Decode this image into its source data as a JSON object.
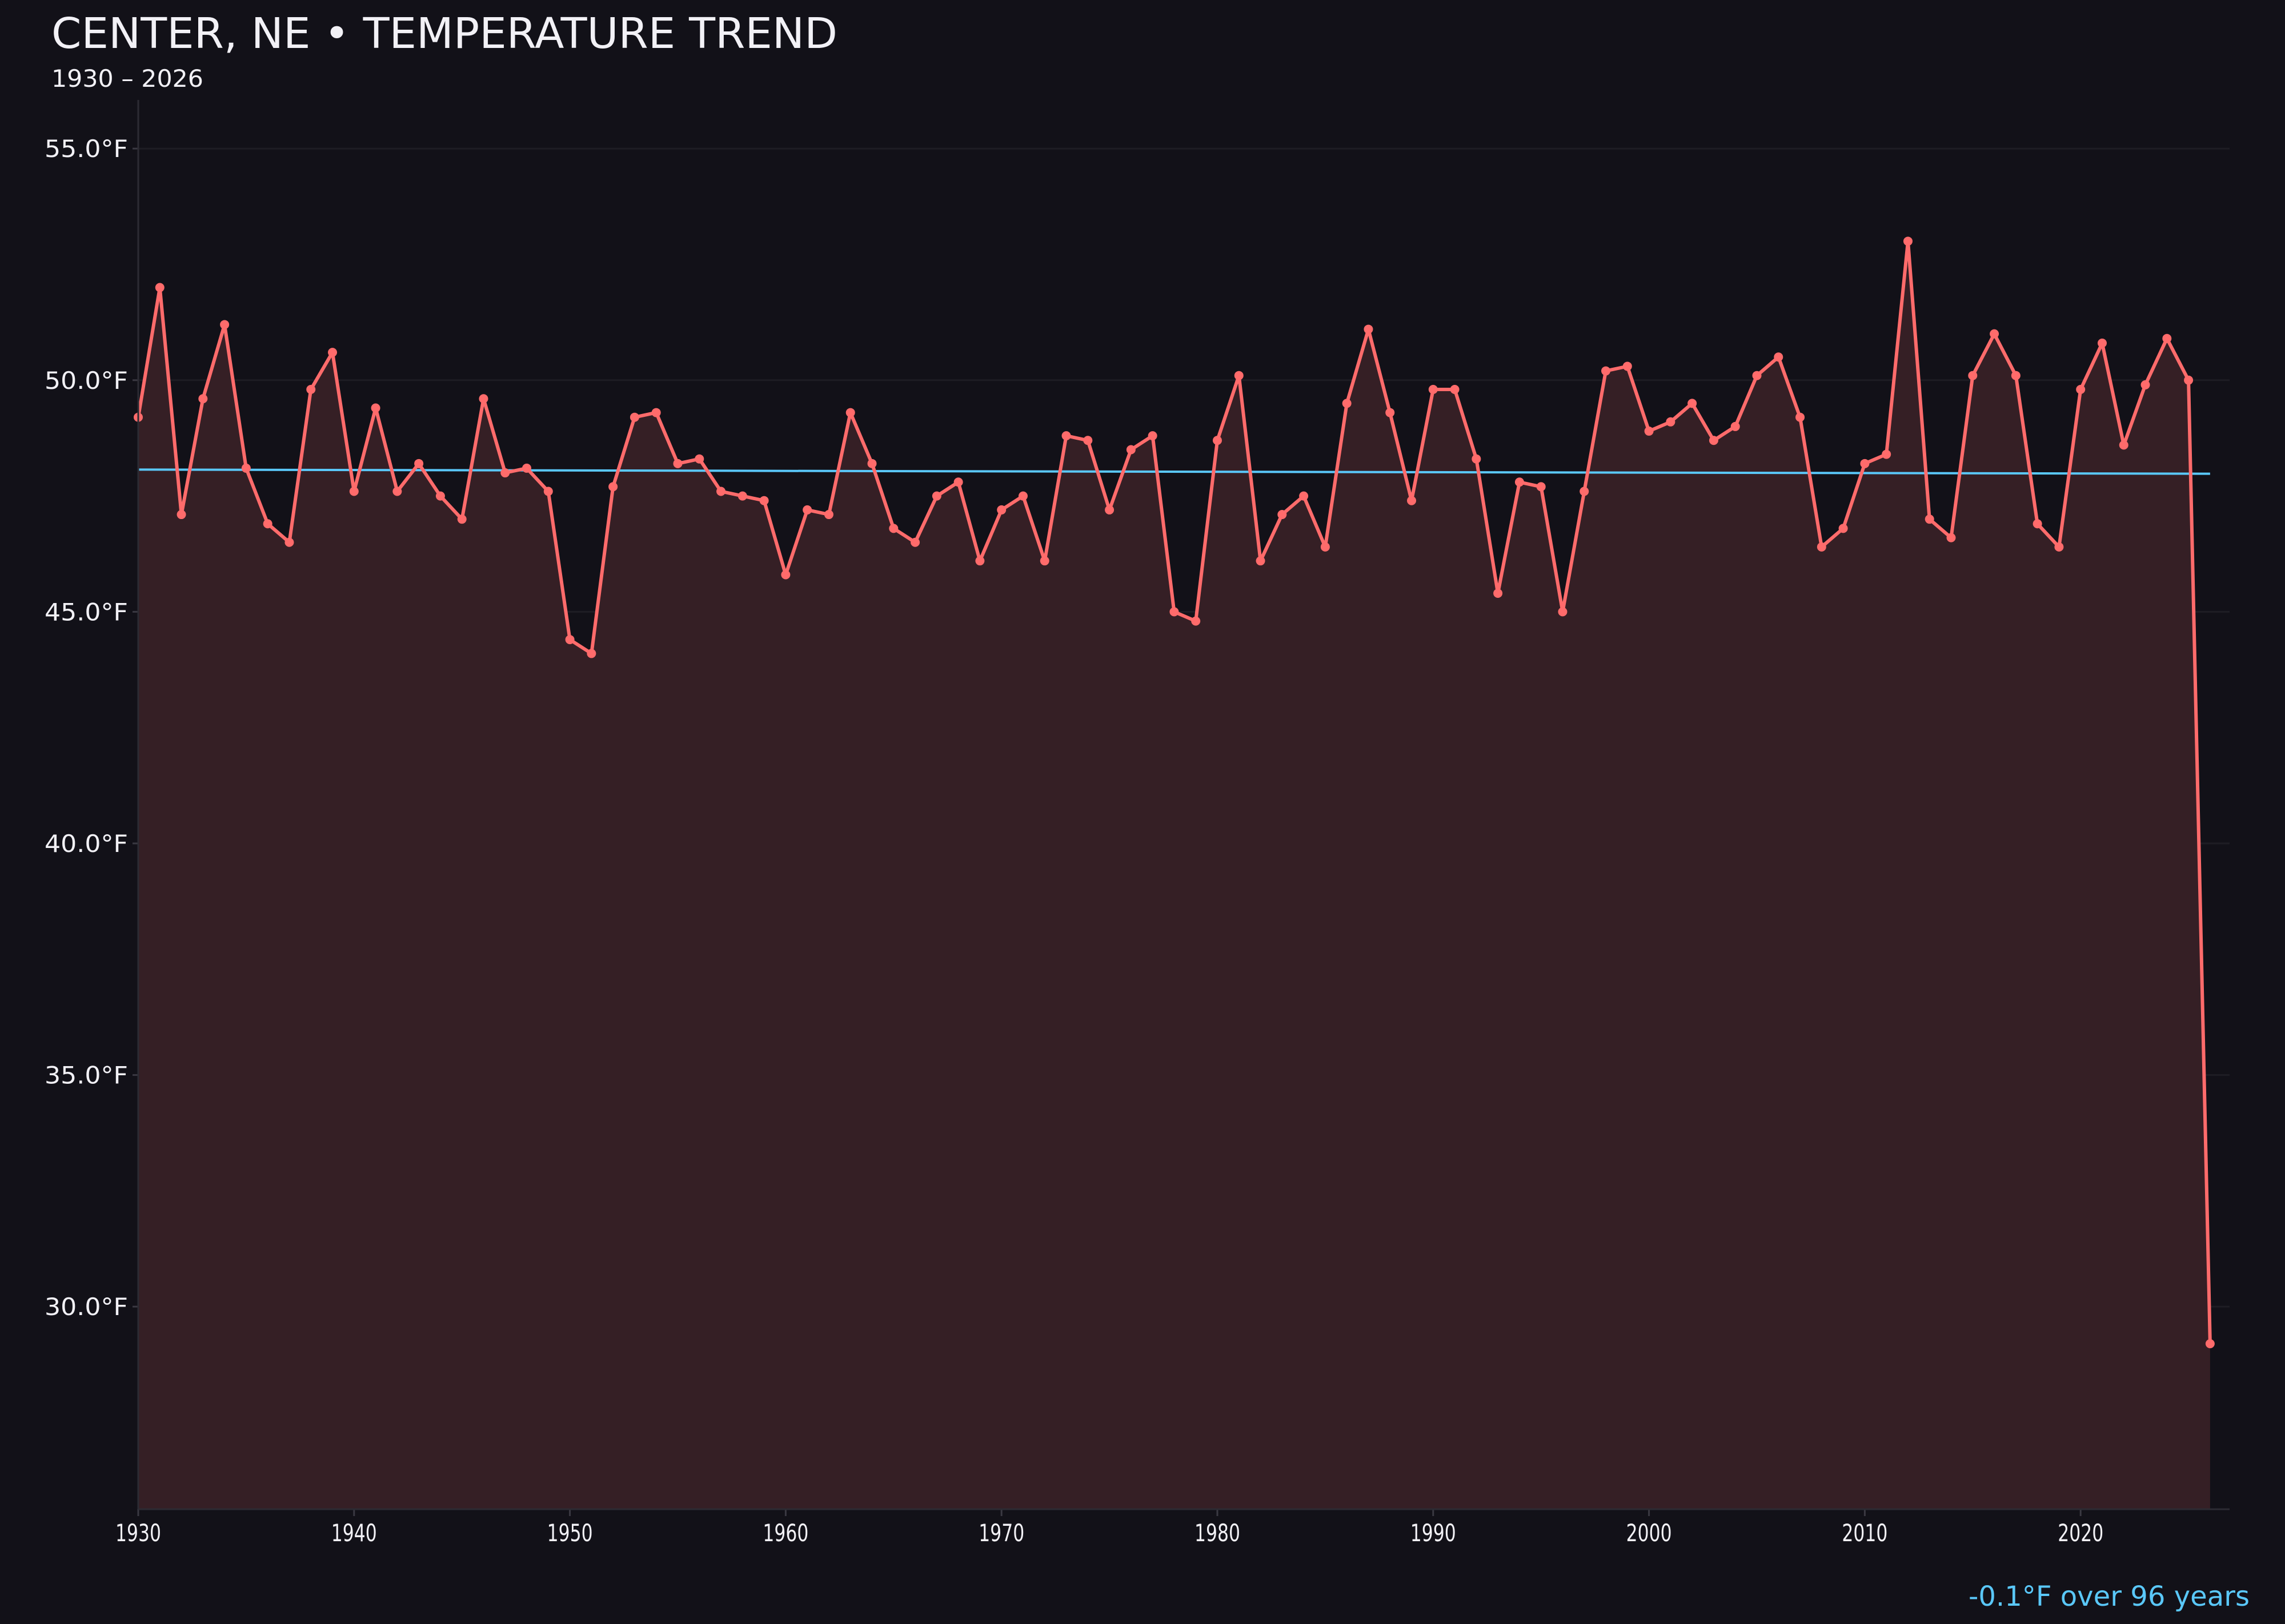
{
  "chart_data": {
    "type": "line",
    "title": "CENTER, NE • TEMPERATURE TREND",
    "subtitle": "1930 – 2026",
    "annotation": "-0.1°F over 96 years",
    "xlabel": "",
    "ylabel": "",
    "xlim": [
      1930,
      2027
    ],
    "ylim": [
      25.6,
      56.5
    ],
    "grid": true,
    "x_ticks": [
      1930,
      1940,
      1950,
      1960,
      1970,
      1980,
      1990,
      2000,
      2010,
      2020
    ],
    "x_tick_labels": [
      "1930",
      "1940",
      "1950",
      "1960",
      "1970",
      "1980",
      "1990",
      "2000",
      "2010",
      "2020"
    ],
    "y_ticks": [
      30,
      35,
      40,
      45,
      50,
      55
    ],
    "y_tick_labels": [
      "30.0°F",
      "35.0°F",
      "40.0°F",
      "45.0°F",
      "50.0°F",
      "55.0°F"
    ],
    "colors": {
      "background": "#121118",
      "line": "#ff6b6b",
      "fill": "#351f25",
      "trend": "#5ac8fa",
      "grid": "#1e1d24",
      "text": "#f2f1f6"
    },
    "series": [
      {
        "x": [
          1930,
          1931,
          1932,
          1933,
          1934,
          1935,
          1936,
          1937,
          1938,
          1939,
          1940,
          1941,
          1942,
          1943,
          1944,
          1945,
          1946,
          1947,
          1948,
          1949,
          1950,
          1951,
          1952,
          1953,
          1954,
          1955,
          1956,
          1957,
          1958,
          1959,
          1960,
          1961,
          1962,
          1963,
          1964,
          1965,
          1966,
          1967,
          1968,
          1969,
          1970,
          1971,
          1972,
          1973,
          1974,
          1975,
          1976,
          1977,
          1978,
          1979,
          1980,
          1981,
          1982,
          1983,
          1984,
          1985,
          1986,
          1987,
          1988,
          1989,
          1990,
          1991,
          1992,
          1993,
          1994,
          1995,
          1996,
          1997,
          1998,
          1999,
          2000,
          2001,
          2002,
          2003,
          2004,
          2005,
          2006,
          2007,
          2008,
          2009,
          2010,
          2011,
          2012,
          2013,
          2014,
          2015,
          2016,
          2017,
          2018,
          2019,
          2020,
          2021,
          2022,
          2023,
          2024,
          2025,
          2026
        ],
        "values": [
          49.2,
          52.0,
          47.1,
          49.6,
          51.2,
          48.1,
          46.9,
          46.5,
          49.8,
          50.6,
          47.6,
          49.4,
          47.6,
          48.2,
          47.5,
          47.0,
          49.6,
          48.0,
          48.1,
          47.6,
          44.4,
          44.1,
          47.7,
          49.2,
          49.3,
          48.2,
          48.3,
          47.6,
          47.5,
          47.4,
          45.8,
          47.2,
          47.1,
          49.3,
          48.2,
          46.8,
          46.5,
          47.5,
          47.8,
          46.1,
          47.2,
          47.5,
          46.1,
          48.8,
          48.7,
          47.2,
          48.5,
          48.8,
          45.0,
          44.8,
          48.7,
          50.1,
          46.1,
          47.1,
          47.5,
          46.4,
          49.5,
          51.1,
          49.3,
          47.4,
          49.8,
          49.8,
          48.3,
          45.4,
          47.8,
          47.7,
          45.0,
          47.6,
          50.2,
          50.3,
          48.9,
          49.1,
          49.5,
          48.7,
          49.0,
          50.1,
          50.5,
          49.2,
          46.4,
          46.8,
          48.2,
          48.4,
          53.0,
          47.0,
          46.6,
          50.1,
          51.0,
          50.1,
          46.9,
          46.4,
          49.8,
          50.8,
          48.6,
          49.9,
          50.9,
          50.0,
          29.2
        ]
      },
      {
        "name": "trend",
        "x": [
          1930,
          2026
        ],
        "values": [
          48.07,
          47.98
        ]
      }
    ]
  }
}
